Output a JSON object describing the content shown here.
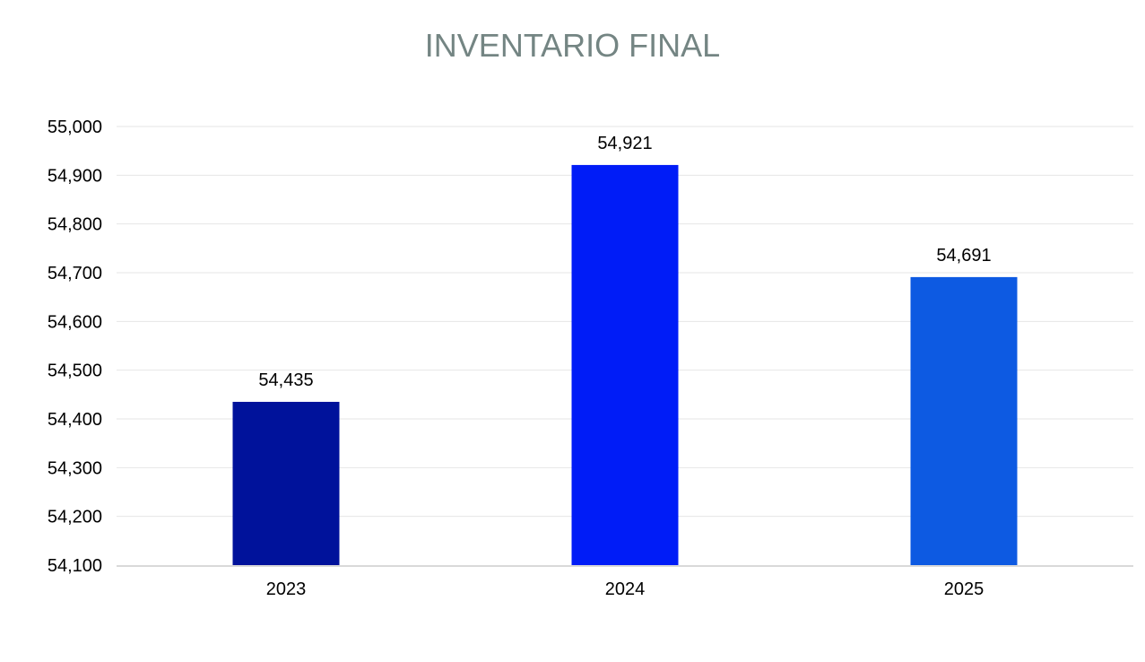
{
  "chart_data": {
    "type": "bar",
    "title": "INVENTARIO FINAL",
    "categories": [
      "2023",
      "2024",
      "2025"
    ],
    "values": [
      54435,
      54921,
      54691
    ],
    "value_labels": [
      "54,435",
      "54,921",
      "54,691"
    ],
    "bar_colors": [
      "#00129b",
      "#001cf7",
      "#0d5ae2"
    ],
    "ylim": [
      54100,
      55000
    ],
    "yticks": [
      54100,
      54200,
      54300,
      54400,
      54500,
      54600,
      54700,
      54800,
      54900,
      55000
    ],
    "ytick_labels": [
      "54,100",
      "54,200",
      "54,300",
      "54,400",
      "54,500",
      "54,600",
      "54,700",
      "54,800",
      "54,900",
      "55,000"
    ],
    "grid": true,
    "gridline_color": "#e6e6e6",
    "axis_color": "#d9d9d9",
    "title_color": "#748583"
  }
}
